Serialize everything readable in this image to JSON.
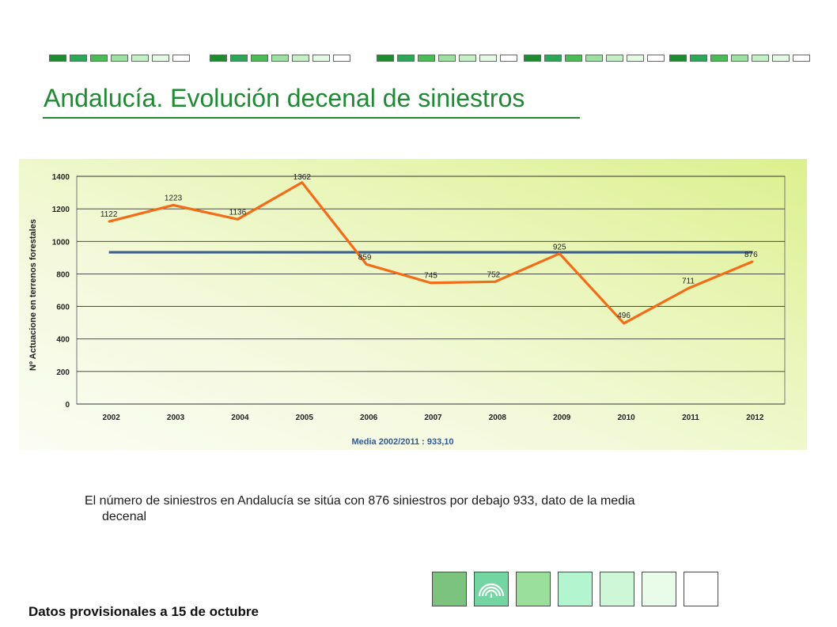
{
  "slide": {
    "title": "Andalucía. Evolución decenal de siniestros",
    "body_line1": "El número de siniestros en Andalucía se sitúa con 876 siniestros por debajo 933, dato de la media",
    "body_line2": "decenal",
    "footer": "Datos provisionales a 15 de octubre"
  },
  "colors": {
    "title": "#1f8a33",
    "header_squares": [
      "#1e8a32",
      "#2ea65a",
      "#4cbb57",
      "#9ee0a4",
      "#c6eec7",
      "#e6f8e6",
      "#ffffff"
    ],
    "footer_boxes": [
      "#7cc47e",
      "#73d6a2",
      "#9be09a",
      "#b2f5cf",
      "#cdf7d6",
      "#e9fbe9",
      "#ffffff"
    ],
    "series_line": "#f36c18",
    "mean_line": "#3a5f8c",
    "caption": "#2f5a9a"
  },
  "icons": {
    "footer_logo": "junta-andalucia-arch-icon"
  },
  "chart_data": {
    "type": "line",
    "x": [
      "2002",
      "2003",
      "2004",
      "2005",
      "2006",
      "2007",
      "2008",
      "2009",
      "2010",
      "2011",
      "2012"
    ],
    "ylabel": "Nº Actuacione en terrenos forestales",
    "ylim": [
      0,
      1400
    ],
    "yticks": [
      0,
      200,
      400,
      600,
      800,
      1000,
      1200,
      1400
    ],
    "grid": true,
    "series": [
      {
        "values": [
          1122,
          1223,
          1136,
          1362,
          859,
          745,
          752,
          925,
          496,
          711,
          876
        ]
      },
      {
        "values": [
          933.1,
          933.1,
          933.1,
          933.1,
          933.1,
          933.1,
          933.1,
          933.1,
          933.1,
          933.1,
          933.1
        ]
      }
    ],
    "data_labels": [
      "1122",
      "1223",
      "1136",
      "1362",
      "859",
      "745",
      "752",
      "925",
      "496",
      "711",
      "876"
    ],
    "caption": "Media 2002/2011 : 933,10"
  }
}
